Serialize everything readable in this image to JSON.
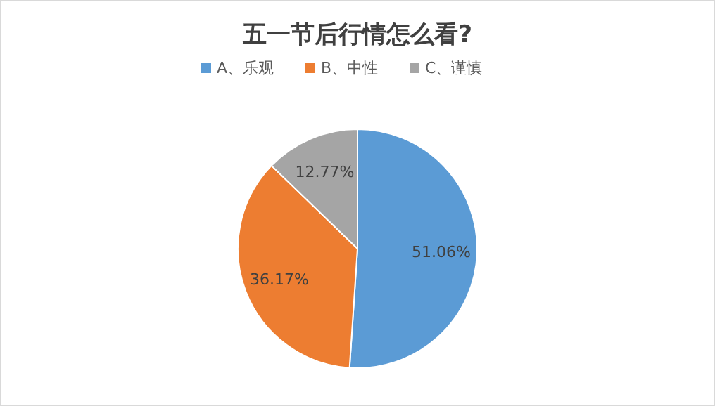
{
  "chart_data": {
    "type": "pie",
    "title": "五一节后行情怎么看?",
    "categories": [
      "A、乐观",
      "B、中性",
      "C、谨慎"
    ],
    "values": [
      51.06,
      36.17,
      12.77
    ],
    "value_labels": [
      "51.06%",
      "36.17%",
      "12.77%"
    ],
    "colors": [
      "#5b9bd5",
      "#ed7d31",
      "#a5a5a5"
    ],
    "legend": "top"
  }
}
